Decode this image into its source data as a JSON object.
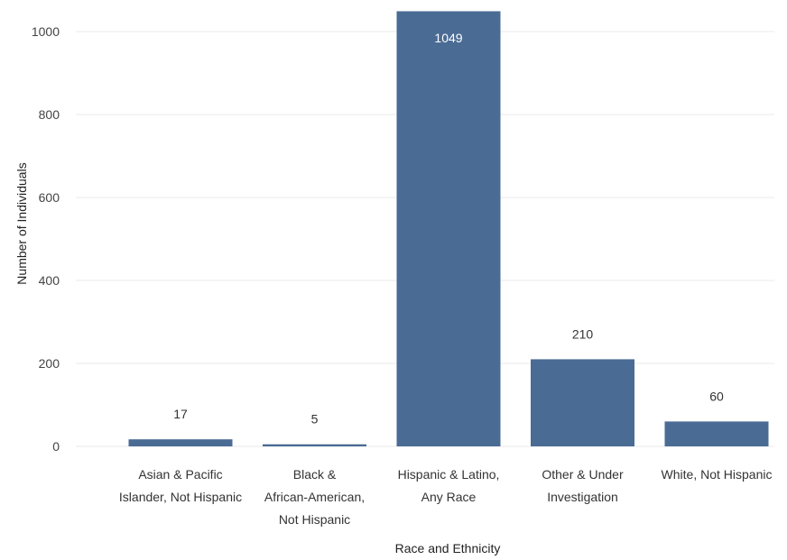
{
  "chart_data": {
    "type": "bar",
    "title": "",
    "xlabel": "Race and Ethnicity",
    "ylabel": "Number of Individuals",
    "categories": [
      [
        "Asian & Pacific",
        "Islander, Not Hispanic"
      ],
      [
        "Black &",
        "African-American,",
        "Not Hispanic"
      ],
      [
        "Hispanic & Latino,",
        "Any Race"
      ],
      [
        "Other & Under",
        "Investigation"
      ],
      [
        "White, Not Hispanic"
      ]
    ],
    "values": [
      17,
      5,
      1049,
      210,
      60
    ],
    "data_labels": [
      "17",
      "5",
      "1049",
      "210",
      "60"
    ],
    "yticks": [
      0,
      200,
      400,
      600,
      800,
      1000
    ],
    "ylim": [
      0,
      1050
    ],
    "grid": true,
    "legend": "none",
    "bar_color": "#4a6b94"
  }
}
